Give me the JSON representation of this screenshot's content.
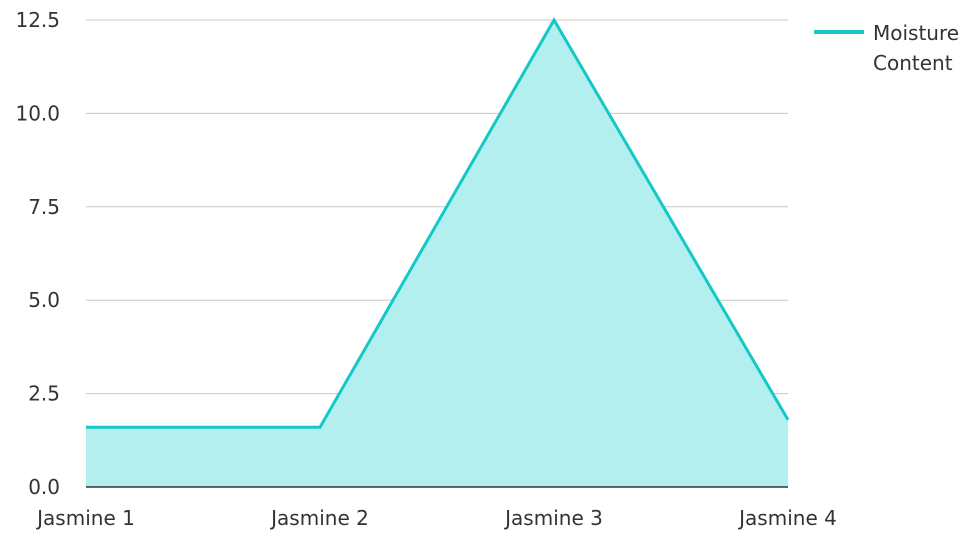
{
  "chart_data": {
    "type": "area",
    "categories": [
      "Jasmine 1",
      "Jasmine 2",
      "Jasmine 3",
      "Jasmine 4"
    ],
    "series": [
      {
        "name": "Moisture Content",
        "values": [
          1.6,
          1.6,
          12.5,
          1.8
        ],
        "line_color": "#14c8c8",
        "fill_color": "#b3efee"
      }
    ],
    "ylim": [
      0,
      12.5
    ],
    "yticks": [
      "0.0",
      "2.5",
      "5.0",
      "7.5",
      "10.0",
      "12.5"
    ],
    "grid": true,
    "legend_position": "top-right",
    "legend_lines": [
      "Moisture",
      "Content"
    ]
  }
}
